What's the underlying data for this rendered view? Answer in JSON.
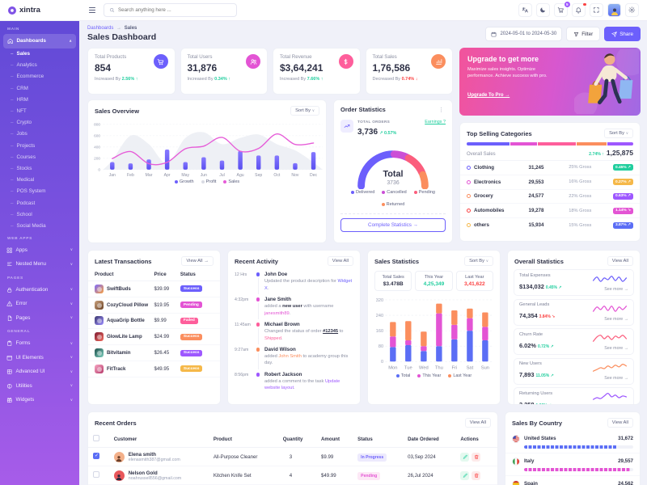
{
  "brand": {
    "name": "xintra"
  },
  "header": {
    "search": {
      "placeholder": "Search anything here ...",
      "icon": "search-icon"
    },
    "cart_badge": "5",
    "icons": [
      {
        "name": "language-icon"
      },
      {
        "name": "dark-mode-icon"
      },
      {
        "name": "cart-icon",
        "badge": "5"
      },
      {
        "name": "notifications-icon",
        "dot": true
      },
      {
        "name": "fullscreen-icon"
      },
      {
        "name": "avatar"
      },
      {
        "name": "settings-icon"
      }
    ]
  },
  "page": {
    "breadcrumb": {
      "parent": "Dashboards",
      "separator": "→",
      "current": "Sales"
    },
    "title": "Sales Dashboard",
    "date_range": "2024-05-01 to 2024-05-30",
    "filter_label": "Filter",
    "share_label": "Share"
  },
  "sidebar": {
    "sections": [
      {
        "label": "MAIN",
        "groups": [
          {
            "label": "Dashboards",
            "icon": "home",
            "expanded": true,
            "active": true,
            "children": [
              "Sales",
              "Analytics",
              "Ecommerce",
              "CRM",
              "HRM",
              "NFT",
              "Crypto",
              "Jobs",
              "Projects",
              "Courses",
              "Stocks",
              "Medical",
              "POS System",
              "Podcast",
              "School",
              "Social Media"
            ],
            "active_child": "Sales"
          }
        ]
      },
      {
        "label": "WEB APPS",
        "groups": [
          {
            "label": "Apps",
            "icon": "apps"
          },
          {
            "label": "Nested Menu",
            "icon": "nested"
          }
        ]
      },
      {
        "label": "PAGES",
        "groups": [
          {
            "label": "Authentication",
            "icon": "lock"
          },
          {
            "label": "Error",
            "icon": "warning"
          },
          {
            "label": "Pages",
            "icon": "pages"
          }
        ]
      },
      {
        "label": "GENERAL",
        "groups": [
          {
            "label": "Forms",
            "icon": "forms"
          },
          {
            "label": "UI Elements",
            "icon": "ui"
          },
          {
            "label": "Advanced UI",
            "icon": "advanced"
          },
          {
            "label": "Utilities",
            "icon": "utilities"
          },
          {
            "label": "Widgets",
            "icon": "widgets"
          }
        ]
      }
    ]
  },
  "stats": [
    {
      "label": "Total Products",
      "value": "854",
      "change_prefix": "Increased By",
      "change": "2.56%",
      "direction": "up",
      "icon": "cart",
      "color": "#6c5ffc"
    },
    {
      "label": "Total Users",
      "value": "31,876",
      "change_prefix": "Increased By",
      "change": "0.34%",
      "direction": "up",
      "icon": "users",
      "color": "#e354d4"
    },
    {
      "label": "Total Revenue",
      "value": "$3,64,241",
      "change_prefix": "Increased By",
      "change": "7.66%",
      "direction": "up",
      "icon": "dollar",
      "color": "#fe5e9b"
    },
    {
      "label": "Total Sales",
      "value": "1,76,586",
      "change_prefix": "Decreased By",
      "change": "0.74%",
      "direction": "down",
      "icon": "chart",
      "color": "#fb8e5e"
    }
  ],
  "upgrade": {
    "title": "Upgrade to get more",
    "description": "Maximize sales insights. Optimize performance. Achieve success with pro.",
    "cta": "Upgrade To Pro →"
  },
  "panels": {
    "sales_overview": {
      "title": "Sales Overview",
      "sort_label": "Sort By"
    },
    "order_statistics": {
      "title": "Order Statistics",
      "stat_label": "TOTAL ORDERS",
      "stat_value": "3,736",
      "stat_change": "↗ 0.57%",
      "earnings_link": "Earnings ?",
      "cta": "Complete Statistics →"
    },
    "top_selling": {
      "title": "Top Selling Categories",
      "sort_label": "Sort By",
      "overall_label": "Overall Sales",
      "overall_change": "2.74% ↑",
      "overall_value": "1,25,875",
      "bar_segments": [
        {
          "color": "#6c5ffc",
          "pct": 25
        },
        {
          "color": "#e354d4",
          "pct": 16
        },
        {
          "color": "#fe5e9b",
          "pct": 22
        },
        {
          "color": "#fb8e5e",
          "pct": 18
        },
        {
          "color": "#9e58ff",
          "pct": 15
        }
      ],
      "rows": [
        {
          "name": "Clothing",
          "dot": "#6c5ffc",
          "value": "31,245",
          "gross": "25% Gross",
          "badge": "0.45%",
          "badge_dir": "up",
          "badge_color": "#21ce9e"
        },
        {
          "name": "Electronics",
          "dot": "#e354d4",
          "value": "29,553",
          "gross": "16% Gross",
          "badge": "0.27%",
          "badge_dir": "up",
          "badge_color": "#f5b849"
        },
        {
          "name": "Grocery",
          "dot": "#fb8e5e",
          "value": "24,577",
          "gross": "22% Gross",
          "badge": "0.63%",
          "badge_dir": "up",
          "badge_color": "#9e58ff"
        },
        {
          "name": "Automobiles",
          "dot": "#fb4242",
          "value": "19,278",
          "gross": "18% Gross",
          "badge": "1.14%",
          "badge_dir": "down",
          "badge_color": "#e354d4"
        },
        {
          "name": "others",
          "dot": "#f5b849",
          "value": "15,934",
          "gross": "15% Gross",
          "badge": "3.87%",
          "badge_dir": "up",
          "badge_color": "#5b6ef5"
        }
      ]
    },
    "latest_transactions": {
      "title": "Latest Transactions",
      "view_all": "View All →",
      "columns": [
        "Product",
        "Price",
        "Status"
      ],
      "rows": [
        {
          "product": "SwiftBuds",
          "price": "$39.99",
          "status": "Success",
          "status_color": "#6c5ffc",
          "thumb": [
            "#7d6bff",
            "#f9a03f"
          ]
        },
        {
          "product": "CozyCloud Pillow",
          "price": "$19.95",
          "status": "Pending",
          "status_color": "#e354d4",
          "thumb": [
            "#caa27e",
            "#6b4226"
          ]
        },
        {
          "product": "AquaGrip Bottle",
          "price": "$9.99",
          "status": "Failed",
          "status_color": "#fe5e9b",
          "thumb": [
            "#3d3a6e",
            "#9b8cff"
          ]
        },
        {
          "product": "GlowLite Lamp",
          "price": "$24.99",
          "status": "Success",
          "status_color": "#fb8e5e",
          "thumb": [
            "#7e1d33",
            "#f06a5e"
          ]
        },
        {
          "product": "Bitvitamin",
          "price": "$26.45",
          "status": "Success",
          "status_color": "#9e58ff",
          "thumb": [
            "#1d4e4a",
            "#7fd1c0"
          ]
        },
        {
          "product": "FitTrack",
          "price": "$49.95",
          "status": "Success",
          "status_color": "#f5b849",
          "thumb": [
            "#f7a8c4",
            "#b5386a"
          ]
        }
      ]
    },
    "recent_activity": {
      "title": "Recent Activity",
      "view_all": "View All",
      "items": [
        {
          "time": "12 Hrs",
          "dot": "#6c5ffc",
          "name": "John Doe",
          "desc": [
            {
              "t": "Updated the product description for "
            },
            {
              "t": "Widget X",
              "c": "#6c5ffc"
            },
            {
              "t": "."
            }
          ]
        },
        {
          "time": "4:32pm",
          "dot": "#e354d4",
          "name": "Jane Smith",
          "desc": [
            {
              "t": "added a "
            },
            {
              "t": "new user",
              "b": true
            },
            {
              "t": " with username "
            },
            {
              "t": "janesmith89",
              "c": "#e354d4"
            },
            {
              "t": "."
            }
          ]
        },
        {
          "time": "11:45am",
          "dot": "#fe5e9b",
          "name": "Michael Brown",
          "desc": [
            {
              "t": "Changed the status of order "
            },
            {
              "t": "#12345",
              "b": true,
              "u": true
            },
            {
              "t": " to "
            },
            {
              "t": "Shipped",
              "c": "#fe5e9b"
            },
            {
              "t": "."
            }
          ]
        },
        {
          "time": "9:27am",
          "dot": "#fb8e5e",
          "name": "David Wilson",
          "desc": [
            {
              "t": "added "
            },
            {
              "t": "John Smith",
              "c": "#fb8e5e"
            },
            {
              "t": " to academy group this day."
            }
          ]
        },
        {
          "time": "8:56pm",
          "dot": "#9e58ff",
          "name": "Robert Jackson",
          "desc": [
            {
              "t": "added a comment to the task "
            },
            {
              "t": "Update website layout",
              "c": "#9e58ff"
            },
            {
              "t": "."
            }
          ]
        }
      ]
    },
    "sales_statistics": {
      "title": "Sales Statistics",
      "sort_label": "Sort By",
      "boxes": [
        {
          "label": "Total Sales",
          "value": "$3.478B",
          "color": "#2f3247"
        },
        {
          "label": "This Year",
          "value": "4,25,349",
          "color": "#21ce9e"
        },
        {
          "label": "Last Year",
          "value": "3,41,622",
          "color": "#fb4242"
        }
      ]
    },
    "overall_statistics": {
      "title": "Overall Statistics",
      "view_all": "View All",
      "see_more": "See more →",
      "rows": [
        {
          "label": "Total Expenses",
          "value": "$134,032",
          "change": "0.45% ↗",
          "dir": "up",
          "spark_color": "#6c5ffc",
          "spark": [
            4,
            8,
            3,
            7,
            5,
            9,
            4,
            8,
            3,
            7
          ]
        },
        {
          "label": "General Leads",
          "value": "74,354",
          "change": "3.84% ↘",
          "dir": "down",
          "spark_color": "#e354d4",
          "spark": [
            3,
            8,
            5,
            9,
            4,
            9,
            3,
            8,
            5,
            9
          ]
        },
        {
          "label": "Churn Rate",
          "value": "6.02%",
          "change": "0.72% ↗",
          "dir": "up",
          "spark_color": "#fb5e7d",
          "spark": [
            2,
            7,
            9,
            5,
            8,
            4,
            8,
            6,
            9,
            5
          ]
        },
        {
          "label": "New Users",
          "value": "7,893",
          "change": "11.05% ↗",
          "dir": "up",
          "spark_color": "#fb8e5e",
          "spark": [
            2,
            4,
            6,
            5,
            8,
            6,
            9,
            7,
            10,
            8
          ]
        },
        {
          "label": "Returning Users",
          "value": "3,258",
          "change": "1.69% ↗",
          "dir": "up",
          "spark_color": "#9e58ff",
          "spark": [
            3,
            5,
            4,
            7,
            10,
            6,
            8,
            5,
            7,
            6
          ]
        }
      ]
    },
    "recent_orders": {
      "title": "Recent Orders",
      "view_all": "View All",
      "columns": [
        "Customer",
        "Product",
        "Quantity",
        "Amount",
        "Status",
        "Date Ordered",
        "Actions"
      ],
      "rows": [
        {
          "checked": true,
          "customer": "Elena smith",
          "email": "elenasmith387@gmail.com",
          "avatar": [
            "#f3b08a",
            "#6b3f2a"
          ],
          "product": "All-Purpose Cleaner",
          "qty": "3",
          "amount": "$9.99",
          "status": "In Progress",
          "status_style": "soft-indigo",
          "date": "03,Sep 2024"
        },
        {
          "checked": false,
          "customer": "Nelson Gold",
          "email": "noahrussell556@gmail.com",
          "avatar": [
            "#e8575b",
            "#2d2a3f"
          ],
          "product": "Kitchen Knife Set",
          "qty": "4",
          "amount": "$49.99",
          "status": "Pending",
          "status_style": "soft-pink",
          "date": "26,Jul 2024"
        }
      ]
    },
    "sales_by_country": {
      "title": "Sales By Country",
      "view_all": "View All",
      "rows": [
        {
          "country": "United States",
          "flag": "us",
          "value": "31,672",
          "bar_color": "#5b6ef5",
          "bar_pct": 85
        },
        {
          "country": "Italy",
          "flag": "it",
          "value": "29,557",
          "bar_color": "#e354d4",
          "bar_pct": 97
        },
        {
          "country": "Spain",
          "flag": "es",
          "value": "24,562",
          "bar_color": "#fe5e9b",
          "bar_pct": 78
        }
      ]
    }
  },
  "chart_data": [
    {
      "id": "sales-overview",
      "type": "bar+line+area",
      "title": "Sales Overview",
      "categories": [
        "Jan",
        "Feb",
        "Mar",
        "Apr",
        "May",
        "Jun",
        "Jul",
        "Agu",
        "Sep",
        "Oct",
        "Nov",
        "Dec"
      ],
      "yticks": [
        0,
        200,
        400,
        600,
        800
      ],
      "ylim": [
        0,
        800
      ],
      "grid": true,
      "legend_position": "bottom",
      "series": [
        {
          "name": "Growth",
          "type": "bar",
          "color": "#6c5ffc",
          "values": [
            135,
            110,
            180,
            355,
            135,
            220,
            160,
            330,
            250,
            250,
            115,
            310
          ]
        },
        {
          "name": "Profit",
          "type": "area",
          "color": "#ebedf3",
          "values": [
            150,
            600,
            450,
            110,
            560,
            660,
            450,
            560,
            620,
            450,
            340,
            130
          ]
        },
        {
          "name": "Sales",
          "type": "line",
          "color": "#e65cd8",
          "values": [
            195,
            320,
            105,
            130,
            370,
            415,
            570,
            325,
            375,
            630,
            445,
            470
          ]
        }
      ]
    },
    {
      "id": "order-statistics",
      "type": "pie",
      "shape": "semicircle-gauge",
      "center_label": "Total",
      "center_value": "3736",
      "labels": [
        "Delivered",
        "Cancelled",
        "Pending",
        "Returned"
      ],
      "values": [
        52,
        14,
        22,
        12
      ],
      "colors": [
        "#6c5ffc",
        "#cb4fd6",
        "#fb5e7d",
        "#fb8e5e"
      ]
    },
    {
      "id": "sales-statistics",
      "type": "bar",
      "stacked": true,
      "categories": [
        "Mon",
        "Tue",
        "Wed",
        "Thu",
        "Fri",
        "Sat",
        "Sun"
      ],
      "yticks": [
        0,
        80,
        160,
        240,
        320
      ],
      "ylim": [
        0,
        320
      ],
      "series": [
        {
          "name": "Total",
          "color": "#5b6ef5",
          "values": [
            75,
            85,
            55,
            80,
            115,
            160,
            110
          ]
        },
        {
          "name": "This Year",
          "color": "#e354d4",
          "values": [
            55,
            25,
            25,
            170,
            75,
            65,
            70
          ]
        },
        {
          "name": "Last Year",
          "color": "#fb8e5e",
          "values": [
            75,
            100,
            75,
            50,
            75,
            50,
            75
          ]
        }
      ]
    },
    {
      "id": "sales-by-country",
      "type": "bar",
      "categories": [
        "United States",
        "Italy",
        "Spain"
      ],
      "values": [
        31672,
        29557,
        24562
      ]
    }
  ]
}
